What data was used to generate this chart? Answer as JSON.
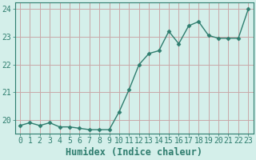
{
  "x": [
    0,
    1,
    2,
    3,
    4,
    5,
    6,
    7,
    8,
    9,
    10,
    11,
    12,
    13,
    14,
    15,
    16,
    17,
    18,
    19,
    20,
    21,
    22,
    23
  ],
  "y": [
    19.8,
    19.9,
    19.8,
    19.9,
    19.75,
    19.75,
    19.7,
    19.65,
    19.65,
    19.65,
    20.3,
    21.1,
    22.0,
    22.4,
    22.5,
    23.2,
    22.75,
    23.4,
    23.55,
    23.05,
    22.95,
    22.95,
    22.95,
    24.0
  ],
  "xlim": [
    -0.5,
    23.5
  ],
  "ylim": [
    19.5,
    24.25
  ],
  "yticks": [
    20,
    21,
    22,
    23,
    24
  ],
  "xticks": [
    0,
    1,
    2,
    3,
    4,
    5,
    6,
    7,
    8,
    9,
    10,
    11,
    12,
    13,
    14,
    15,
    16,
    17,
    18,
    19,
    20,
    21,
    22,
    23
  ],
  "xlabel": "Humidex (Indice chaleur)",
  "line_color": "#2e7d6e",
  "marker": "D",
  "marker_size": 2.5,
  "bg_color": "#d4efea",
  "grid_color": "#c8a8a8",
  "spine_color": "#2e7d6e",
  "tick_color": "#2e7d6e",
  "label_color": "#2e7d6e",
  "font_family": "monospace",
  "xlabel_fontsize": 8.5,
  "tick_fontsize": 7.0,
  "linewidth": 1.0
}
